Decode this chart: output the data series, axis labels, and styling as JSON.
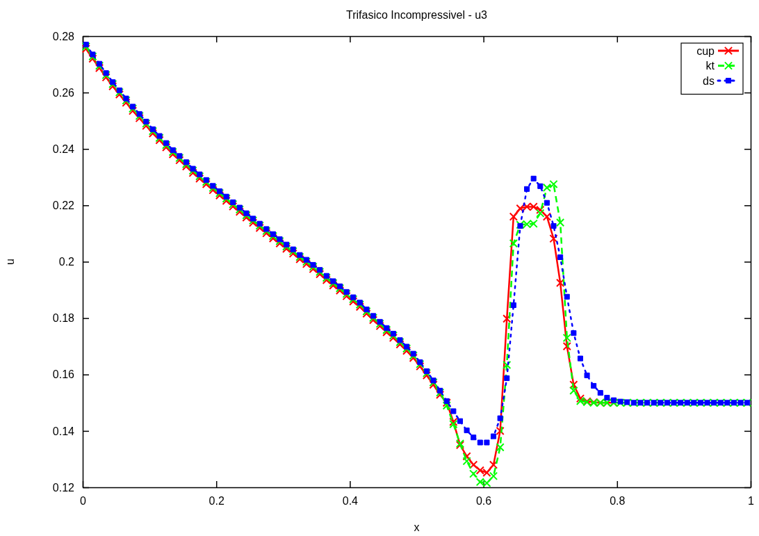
{
  "chart_data": {
    "type": "line",
    "title": "Trifasico Incompressivel - u3",
    "xlabel": "x",
    "ylabel": "u",
    "xlim": [
      0,
      1
    ],
    "xticks": [
      0,
      0.2,
      0.4,
      0.6,
      0.8,
      1
    ],
    "ylim": [
      0.12,
      0.28
    ],
    "yticks": [
      0.12,
      0.14,
      0.16,
      0.18,
      0.2,
      0.22,
      0.24,
      0.26,
      0.28
    ],
    "grid": false,
    "legend": "top right",
    "x": [
      0.005,
      0.015,
      0.025,
      0.035,
      0.045,
      0.055,
      0.065,
      0.075,
      0.085,
      0.095,
      0.105,
      0.115,
      0.125,
      0.135,
      0.145,
      0.155,
      0.165,
      0.175,
      0.185,
      0.195,
      0.205,
      0.215,
      0.225,
      0.235,
      0.245,
      0.255,
      0.265,
      0.275,
      0.285,
      0.295,
      0.305,
      0.315,
      0.325,
      0.335,
      0.345,
      0.355,
      0.365,
      0.375,
      0.385,
      0.395,
      0.405,
      0.415,
      0.425,
      0.435,
      0.445,
      0.455,
      0.465,
      0.475,
      0.485,
      0.495,
      0.505,
      0.515,
      0.525,
      0.535,
      0.545,
      0.555,
      0.565,
      0.575,
      0.585,
      0.595,
      0.605,
      0.615,
      0.625,
      0.635,
      0.645,
      0.655,
      0.665,
      0.675,
      0.685,
      0.695,
      0.705,
      0.715,
      0.725,
      0.735,
      0.745,
      0.755,
      0.765,
      0.775,
      0.785,
      0.795,
      0.805,
      0.815,
      0.825,
      0.835,
      0.845,
      0.855,
      0.865,
      0.875,
      0.885,
      0.895,
      0.905,
      0.915,
      0.925,
      0.935,
      0.945,
      0.955,
      0.965,
      0.975,
      0.985,
      0.995
    ],
    "series": [
      {
        "name": "cup",
        "color": "#ff0000",
        "marker": "cross",
        "line_style": "solid",
        "values": [
          0.2755,
          0.272,
          0.2687,
          0.2654,
          0.2622,
          0.2593,
          0.2564,
          0.2535,
          0.2509,
          0.2482,
          0.2455,
          0.2431,
          0.2406,
          0.2381,
          0.236,
          0.2338,
          0.2315,
          0.2295,
          0.2275,
          0.2254,
          0.2235,
          0.2216,
          0.2196,
          0.2177,
          0.2157,
          0.2138,
          0.212,
          0.2101,
          0.2083,
          0.2065,
          0.2046,
          0.2029,
          0.2009,
          0.1992,
          0.1974,
          0.1956,
          0.1935,
          0.1916,
          0.1898,
          0.1878,
          0.1859,
          0.184,
          0.1816,
          0.1793,
          0.1772,
          0.175,
          0.173,
          0.1707,
          0.1684,
          0.1659,
          0.1629,
          0.1597,
          0.1564,
          0.1528,
          0.15,
          0.1432,
          0.135,
          0.131,
          0.128,
          0.126,
          0.1252,
          0.128,
          0.14,
          0.1798,
          0.216,
          0.2189,
          0.2195,
          0.2195,
          0.2184,
          0.216,
          0.2082,
          0.1925,
          0.17,
          0.1564,
          0.1515,
          0.1505,
          0.1502,
          0.15,
          0.15,
          0.15,
          null,
          null,
          null,
          null,
          null,
          null,
          null,
          null,
          null,
          null,
          null,
          null,
          null,
          null,
          null,
          null,
          null,
          null,
          null,
          null
        ]
      },
      {
        "name": "kt",
        "color": "#00ff00",
        "marker": "cross",
        "line_style": "dashed",
        "values": [
          0.2763,
          0.2728,
          0.2695,
          0.2662,
          0.263,
          0.2601,
          0.2572,
          0.2543,
          0.2517,
          0.249,
          0.2463,
          0.2439,
          0.2414,
          0.2389,
          0.2368,
          0.2346,
          0.2323,
          0.2303,
          0.2283,
          0.2262,
          0.2243,
          0.2224,
          0.2204,
          0.2185,
          0.2165,
          0.2146,
          0.2128,
          0.2109,
          0.2091,
          0.2073,
          0.2054,
          0.2037,
          0.2017,
          0.2,
          0.1982,
          0.1964,
          0.1943,
          0.1924,
          0.1906,
          0.1886,
          0.1867,
          0.1848,
          0.1824,
          0.1801,
          0.178,
          0.1758,
          0.1738,
          0.1715,
          0.1692,
          0.1667,
          0.1637,
          0.1605,
          0.1572,
          0.1536,
          0.149,
          0.1424,
          0.1355,
          0.1293,
          0.1248,
          0.1219,
          0.1215,
          0.124,
          0.1342,
          0.1634,
          0.2065,
          0.2131,
          0.2133,
          0.2135,
          0.2172,
          0.2263,
          0.2275,
          0.2139,
          0.173,
          0.1543,
          0.1506,
          0.1502,
          0.15,
          0.15,
          0.15,
          0.15,
          0.15,
          0.15,
          0.15,
          0.15,
          0.15,
          0.15,
          0.15,
          0.15,
          0.15,
          0.15,
          0.15,
          0.15,
          0.15,
          0.15,
          0.15,
          0.15,
          0.15,
          0.15,
          0.15,
          0.15
        ]
      },
      {
        "name": "ds",
        "color": "#0000ff",
        "marker": "square",
        "line_style": "dotted",
        "values": [
          0.277,
          0.2735,
          0.2702,
          0.2669,
          0.2637,
          0.2608,
          0.2579,
          0.255,
          0.2524,
          0.2497,
          0.247,
          0.2446,
          0.2421,
          0.2396,
          0.2375,
          0.2353,
          0.233,
          0.231,
          0.229,
          0.2269,
          0.225,
          0.2231,
          0.2211,
          0.2192,
          0.2172,
          0.2153,
          0.2135,
          0.2116,
          0.2098,
          0.208,
          0.2061,
          0.2044,
          0.2024,
          0.2007,
          0.1989,
          0.1971,
          0.195,
          0.1931,
          0.1913,
          0.1893,
          0.1874,
          0.1855,
          0.1831,
          0.1808,
          0.1787,
          0.1765,
          0.1745,
          0.1722,
          0.1699,
          0.1674,
          0.1644,
          0.1612,
          0.1579,
          0.1543,
          0.1506,
          0.147,
          0.1435,
          0.1402,
          0.1377,
          0.1359,
          0.1359,
          0.1381,
          0.1445,
          0.1587,
          0.1846,
          0.2127,
          0.2258,
          0.2295,
          0.2268,
          0.2209,
          0.2127,
          0.2016,
          0.1876,
          0.1747,
          0.1657,
          0.1597,
          0.156,
          0.1535,
          0.1518,
          0.1509,
          0.1504,
          0.1502,
          0.15,
          0.15,
          0.15,
          0.15,
          0.15,
          0.15,
          0.15,
          0.15,
          0.15,
          0.15,
          0.15,
          0.15,
          0.15,
          0.15,
          0.15,
          0.15,
          0.15,
          0.15
        ]
      }
    ]
  }
}
